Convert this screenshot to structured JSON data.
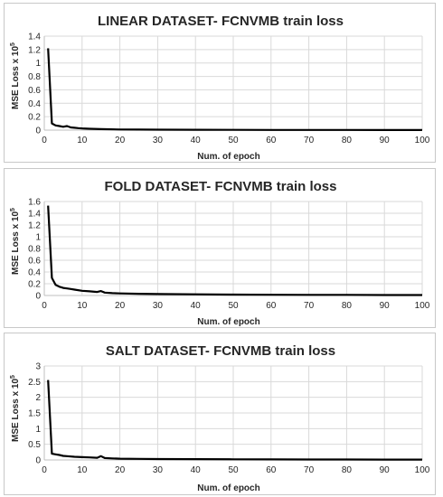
{
  "chart_data": [
    {
      "type": "line",
      "title": "LINEAR DATASET- FCNVMB train loss",
      "xlabel": "Num. of epoch",
      "ylabel": "MSE Loss  x 10",
      "ylabel_exponent": "5",
      "xlim": [
        0,
        100
      ],
      "ylim": [
        0,
        1.4
      ],
      "xticks": [
        0,
        10,
        20,
        30,
        40,
        50,
        60,
        70,
        80,
        90,
        100
      ],
      "yticks": [
        "0",
        "0.2",
        "0.4",
        "0.6",
        "0.8",
        "1",
        "1.2",
        "1.4"
      ],
      "grid": true,
      "x": [
        1,
        2,
        3,
        4,
        5,
        6,
        7,
        8,
        9,
        10,
        12,
        15,
        20,
        25,
        30,
        40,
        50,
        60,
        70,
        80,
        90,
        100
      ],
      "y": [
        1.22,
        0.1,
        0.07,
        0.06,
        0.05,
        0.06,
        0.04,
        0.035,
        0.03,
        0.025,
        0.02,
        0.015,
        0.01,
        0.008,
        0.007,
        0.005,
        0.004,
        0.003,
        0.003,
        0.003,
        0.002,
        0.002
      ]
    },
    {
      "type": "line",
      "title": "FOLD DATASET- FCNVMB train loss",
      "xlabel": "Num. of epoch",
      "ylabel": "MSE Loss  x 10",
      "ylabel_exponent": "5",
      "xlim": [
        0,
        100
      ],
      "ylim": [
        0,
        1.6
      ],
      "xticks": [
        0,
        10,
        20,
        30,
        40,
        50,
        60,
        70,
        80,
        90,
        100
      ],
      "yticks": [
        "0",
        "0.2",
        "0.4",
        "0.6",
        "0.8",
        "1",
        "1.2",
        "1.4",
        "1.6"
      ],
      "grid": true,
      "x": [
        1,
        2,
        3,
        4,
        5,
        6,
        7,
        8,
        10,
        12,
        14,
        15,
        16,
        18,
        20,
        25,
        30,
        40,
        50,
        60,
        70,
        80,
        90,
        100
      ],
      "y": [
        1.53,
        0.3,
        0.18,
        0.15,
        0.13,
        0.12,
        0.11,
        0.1,
        0.08,
        0.07,
        0.06,
        0.075,
        0.05,
        0.04,
        0.035,
        0.03,
        0.025,
        0.02,
        0.015,
        0.012,
        0.01,
        0.01,
        0.008,
        0.008
      ]
    },
    {
      "type": "line",
      "title": "SALT DATASET- FCNVMB train loss",
      "xlabel": "Num. of epoch",
      "ylabel": "MSE Loss  x 10",
      "ylabel_exponent": "5",
      "xlim": [
        0,
        100
      ],
      "ylim": [
        0,
        3
      ],
      "xticks": [
        0,
        10,
        20,
        30,
        40,
        50,
        60,
        70,
        80,
        90,
        100
      ],
      "yticks": [
        "0",
        "0.5",
        "1",
        "1.5",
        "2",
        "2.5",
        "3"
      ],
      "grid": true,
      "x": [
        1,
        2,
        3,
        4,
        5,
        6,
        8,
        10,
        12,
        14,
        15,
        16,
        18,
        20,
        25,
        30,
        40,
        50,
        60,
        70,
        80,
        90,
        100
      ],
      "y": [
        2.55,
        0.2,
        0.18,
        0.16,
        0.13,
        0.12,
        0.1,
        0.09,
        0.08,
        0.07,
        0.12,
        0.06,
        0.05,
        0.04,
        0.035,
        0.03,
        0.025,
        0.02,
        0.018,
        0.015,
        0.015,
        0.012,
        0.012
      ]
    }
  ]
}
